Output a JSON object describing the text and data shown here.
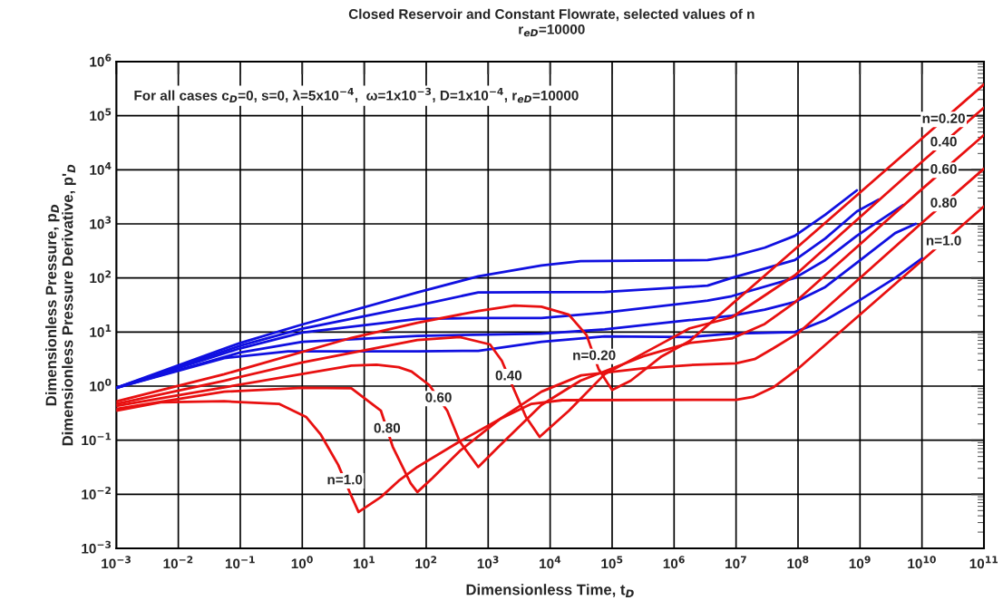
{
  "chart_data": {
    "type": "line",
    "title": "Closed Reservoir and Constant Flowrate, selected values of n",
    "subtitle": "r$_{eD}$=10000",
    "xlabel": "Dimensionless Time, t$_{D}$",
    "ylabel": "Dimensionless Pressure, p$_{D}$\nDimensionless Pressure Derivative, p'$_{D}$",
    "log": "xy",
    "grid": true,
    "line_style": "solid",
    "marker": "none",
    "xlim": [
      0.001,
      100000000000.0
    ],
    "ylim": [
      0.001,
      1000000.0
    ],
    "xticks": [
      {
        "value": 0.001,
        "label": "10$^{−3}$"
      },
      {
        "value": 0.01,
        "label": "10$^{−2}$"
      },
      {
        "value": 0.1,
        "label": "10$^{−1}$"
      },
      {
        "value": 1,
        "label": "10$^{0}$"
      },
      {
        "value": 10,
        "label": "10$^{1}$"
      },
      {
        "value": 100,
        "label": "10$^{2}$"
      },
      {
        "value": 1000,
        "label": "10$^{3}$"
      },
      {
        "value": 10000,
        "label": "10$^{4}$"
      },
      {
        "value": 100000,
        "label": "10$^{5}$"
      },
      {
        "value": 1000000,
        "label": "10$^{6}$"
      },
      {
        "value": 10000000,
        "label": "10$^{7}$"
      },
      {
        "value": 100000000,
        "label": "10$^{8}$"
      },
      {
        "value": 1000000000,
        "label": "10$^{9}$"
      },
      {
        "value": 10000000000,
        "label": "10$^{10}$"
      },
      {
        "value": 100000000000,
        "label": "10$^{11}$"
      }
    ],
    "yticks": [
      {
        "value": 0.001,
        "label": "10$^{−3}$"
      },
      {
        "value": 0.01,
        "label": "10$^{−2}$"
      },
      {
        "value": 0.1,
        "label": "10$^{−1}$"
      },
      {
        "value": 1,
        "label": "10$^{0}$"
      },
      {
        "value": 10,
        "label": "10$^{1}$"
      },
      {
        "value": 100,
        "label": "10$^{2}$"
      },
      {
        "value": 1000,
        "label": "10$^{3}$"
      },
      {
        "value": 10000,
        "label": "10$^{4}$"
      },
      {
        "value": 100000,
        "label": "10$^{5}$"
      },
      {
        "value": 1000000,
        "label": "10$^{6}$"
      }
    ],
    "series": [
      {
        "color": "#1010e0",
        "x": [
          0.001,
          0.1,
          1,
          72,
          692,
          7240,
          30900,
          3470000,
          8500000,
          29000000,
          89000000,
          275000000,
          890000000
        ],
        "values": [
          0.93,
          6.3,
          13.8,
          54,
          107,
          170,
          204,
          214,
          251,
          363,
          603,
          1480,
          4170
        ]
      },
      {
        "color": "#1010e0",
        "x": [
          0.001,
          0.1,
          1,
          72,
          692,
          75900,
          3470000,
          8500000,
          89000000,
          275000000,
          890000000,
          2000000000
        ],
        "values": [
          0.93,
          5.6,
          11.5,
          31,
          54,
          55,
          72,
          100,
          214,
          537,
          1700,
          2820
        ]
      },
      {
        "color": "#1010e0",
        "x": [
          0.001,
          0.1,
          1,
          72,
          692,
          7240,
          75900,
          3470000,
          8500000,
          89000000,
          275000000,
          890000000,
          5000000000
        ],
        "values": [
          0.93,
          5.0,
          9.8,
          17.4,
          18.2,
          18.2,
          22.9,
          38,
          46,
          100,
          214,
          603,
          2240
        ]
      },
      {
        "color": "#1010e0",
        "x": [
          0.001,
          0.1,
          1,
          72,
          7240,
          75900,
          1780000,
          8500000,
          29000000,
          89000000,
          275000000,
          890000000,
          3700000000,
          7900000000
        ],
        "values": [
          0.93,
          4.2,
          6.6,
          8.5,
          9.3,
          11.2,
          16.6,
          20,
          26,
          36,
          68,
          191,
          676,
          1000
        ]
      },
      {
        "color": "#1010e0",
        "x": [
          0.001,
          0.055,
          0.59,
          72,
          692,
          7240,
          75900,
          1780000,
          8500000,
          89000000,
          275000000,
          890000000,
          3700000000,
          10000000000
        ],
        "values": [
          0.93,
          3.3,
          4.4,
          4.4,
          4.5,
          6.6,
          8.3,
          8.1,
          9.3,
          10,
          16.6,
          36,
          100,
          229
        ]
      },
      {
        "color": "#e81010",
        "x": [
          0.001,
          0.055,
          6.2,
          72,
          692,
          2630,
          7240,
          20000,
          38900,
          60300,
          85100,
          100000,
          200000,
          630000,
          1780000,
          100000000,
          10000000000,
          100000000000
        ],
        "values": [
          0.52,
          1.66,
          7.8,
          14.8,
          24.5,
          31,
          29.5,
          21,
          8.7,
          2.09,
          1.12,
          0.85,
          1.26,
          3.55,
          6.8,
          380,
          38000,
          380000
        ]
      },
      {
        "color": "#e81010",
        "x": [
          0.001,
          0.055,
          1,
          72,
          347,
          1070,
          1660,
          2630,
          4070,
          6760,
          20000,
          75900,
          710000,
          1780000,
          8500000,
          89000000,
          10000000000,
          100000000000
        ],
        "values": [
          0.47,
          1.26,
          2.75,
          7.1,
          8.1,
          5.9,
          2.95,
          0.85,
          0.27,
          0.115,
          0.35,
          1.66,
          6.6,
          11.7,
          18.6,
          112,
          14100,
          141000
        ]
      },
      {
        "color": "#e81010",
        "x": [
          0.001,
          0.055,
          6.2,
          15.8,
          36,
          58,
          112,
          219,
          347,
          692,
          1480,
          7240,
          30900,
          316000,
          1780000,
          8500000,
          29000000,
          89000000,
          10000000000,
          100000000000
        ],
        "values": [
          0.43,
          0.95,
          2.4,
          2.5,
          2.24,
          1.86,
          1.05,
          0.35,
          0.095,
          0.032,
          0.076,
          0.45,
          1.26,
          3.55,
          6.3,
          7.6,
          14.1,
          35.5,
          4400,
          44000
        ]
      },
      {
        "color": "#e81010",
        "x": [
          0.001,
          0.055,
          1,
          6.2,
          18.6,
          28.8,
          56,
          72,
          126,
          347,
          1580,
          7240,
          31600,
          316000,
          1780000,
          10000000,
          20000000,
          40000000,
          100000000,
          10000000000,
          100000000000
        ],
        "values": [
          0.38,
          0.79,
          0.93,
          0.91,
          0.35,
          0.076,
          0.016,
          0.011,
          0.02,
          0.063,
          0.25,
          0.79,
          1.58,
          2.14,
          2.45,
          2.63,
          3.16,
          5.0,
          9.5,
          1050,
          10500
        ]
      },
      {
        "color": "#e81010",
        "x": [
          0.001,
          0.0052,
          0.055,
          0.42,
          1.15,
          2.0,
          3.8,
          6.2,
          8.1,
          18.6,
          36,
          72,
          316,
          1580,
          5000,
          15800,
          10000000,
          18600000,
          40000000,
          100000000,
          10000000000,
          100000000000
        ],
        "values": [
          0.35,
          0.5,
          0.525,
          0.47,
          0.27,
          0.126,
          0.035,
          0.0093,
          0.0047,
          0.0089,
          0.0178,
          0.032,
          0.089,
          0.25,
          0.47,
          0.55,
          0.56,
          0.63,
          0.95,
          2.1,
          209,
          2100
        ]
      }
    ],
    "annotations": [
      "For all cases c$_{D}$=0, s=0, λ=5x10$^{−4}$,  ω=1x10$^{−3}$, D=1x10$^{−4}$, r$_{eD}$=10000",
      {
        "text": "n=0.20",
        "x": 22400000000,
        "y": 85000
      },
      {
        "text": "0.40",
        "x": 22400000000,
        "y": 31600
      },
      {
        "text": "0.60",
        "x": 22400000000,
        "y": 9860
      },
      {
        "text": "0.80",
        "x": 22400000000,
        "y": 2350
      },
      {
        "text": "n=1.0",
        "x": 22400000000,
        "y": 468
      },
      {
        "text": "n=0.20",
        "x": 51300,
        "y": 3.55
      },
      {
        "text": "0.40",
        "x": 2140,
        "y": 1.5
      },
      {
        "text": "0.60",
        "x": 158,
        "y": 0.59
      },
      {
        "text": "0.80",
        "x": 23.4,
        "y": 0.16
      },
      {
        "text": "n=1.0",
        "x": 4.86,
        "y": 0.0178
      }
    ]
  }
}
